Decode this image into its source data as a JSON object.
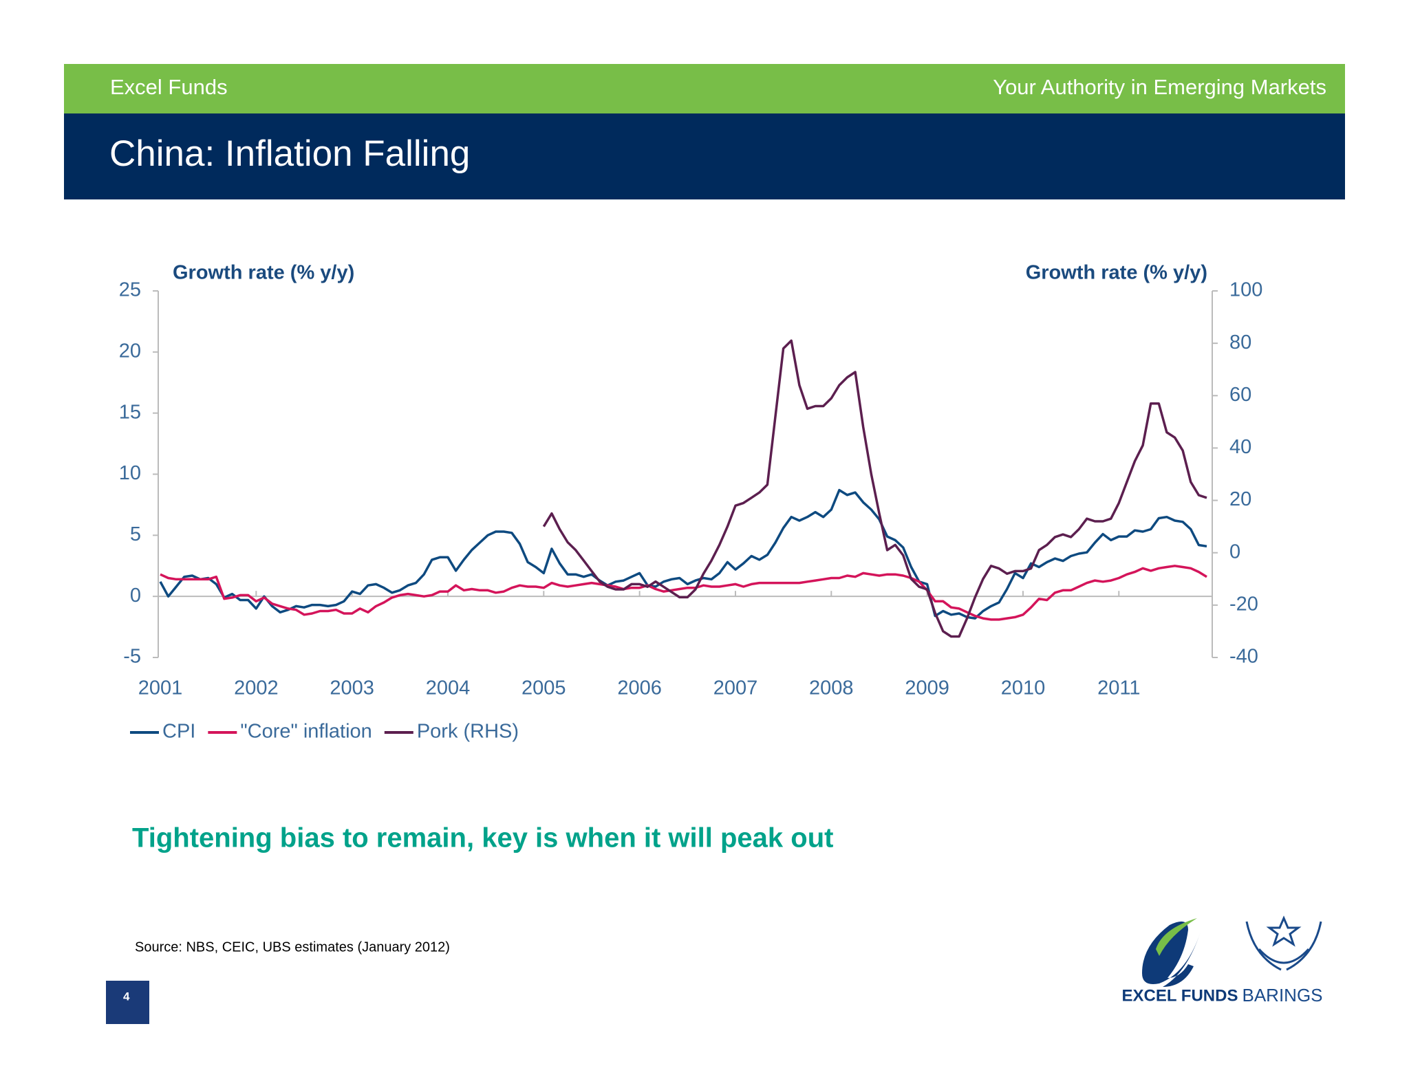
{
  "header": {
    "brand": "Excel Funds",
    "tagline": "Your Authority in Emerging Markets",
    "title": "China: Inflation Falling"
  },
  "chart_data": {
    "type": "line",
    "y_label": "Growth rate (% y/y)",
    "y2_label": "Growth rate (% y/y)",
    "categories": [
      "2001",
      null,
      null,
      null,
      null,
      null,
      null,
      null,
      null,
      null,
      null,
      null,
      "2002",
      null,
      null,
      null,
      null,
      null,
      null,
      null,
      null,
      null,
      null,
      null,
      "2003",
      null,
      null,
      null,
      null,
      null,
      null,
      null,
      null,
      null,
      null,
      null,
      "2004",
      null,
      null,
      null,
      null,
      null,
      null,
      null,
      null,
      null,
      null,
      null,
      "2005",
      null,
      null,
      null,
      null,
      null,
      null,
      null,
      null,
      null,
      null,
      null,
      "2006",
      null,
      null,
      null,
      null,
      null,
      null,
      null,
      null,
      null,
      null,
      null,
      "2007",
      null,
      null,
      null,
      null,
      null,
      null,
      null,
      null,
      null,
      null,
      null,
      "2008",
      null,
      null,
      null,
      null,
      null,
      null,
      null,
      null,
      null,
      null,
      null,
      "2009",
      null,
      null,
      null,
      null,
      null,
      null,
      null,
      null,
      null,
      null,
      null,
      "2010",
      null,
      null,
      null,
      null,
      null,
      null,
      null,
      null,
      null,
      null,
      null,
      "2011",
      null,
      null,
      null,
      null,
      null,
      null,
      null,
      null,
      null,
      null,
      null
    ],
    "series": [
      {
        "name": "CPI",
        "color": "#0e4a80",
        "values": [
          1.2,
          0.0,
          0.8,
          1.6,
          1.7,
          1.4,
          1.5,
          1.0,
          -0.1,
          0.2,
          -0.3,
          -0.3,
          -1.0,
          0.0,
          -0.8,
          -1.3,
          -1.1,
          -0.8,
          -0.9,
          -0.7,
          -0.7,
          -0.8,
          -0.7,
          -0.4,
          0.4,
          0.2,
          0.9,
          1.0,
          0.7,
          0.3,
          0.5,
          0.9,
          1.1,
          1.8,
          3.0,
          3.2,
          3.2,
          2.1,
          3.0,
          3.8,
          4.4,
          5.0,
          5.3,
          5.3,
          5.2,
          4.3,
          2.8,
          2.4,
          1.9,
          3.9,
          2.7,
          1.8,
          1.8,
          1.6,
          1.8,
          1.3,
          0.9,
          1.2,
          1.3,
          1.6,
          1.9,
          0.9,
          0.8,
          1.2,
          1.4,
          1.5,
          1.0,
          1.3,
          1.5,
          1.4,
          1.9,
          2.8,
          2.2,
          2.7,
          3.3,
          3.0,
          3.4,
          4.4,
          5.6,
          6.5,
          6.2,
          6.5,
          6.9,
          6.5,
          7.1,
          8.7,
          8.3,
          8.5,
          7.7,
          7.1,
          6.3,
          4.9,
          4.6,
          4.0,
          2.4,
          1.2,
          1.0,
          -1.6,
          -1.2,
          -1.5,
          -1.4,
          -1.7,
          -1.8,
          -1.2,
          -0.8,
          -0.5,
          0.6,
          1.9,
          1.5,
          2.7,
          2.4,
          2.8,
          3.1,
          2.9,
          3.3,
          3.5,
          3.6,
          4.4,
          5.1,
          4.6,
          4.9,
          4.9,
          5.4,
          5.3,
          5.5,
          6.4,
          6.5,
          6.2,
          6.1,
          5.5,
          4.2,
          4.1
        ]
      },
      {
        "name": "\"Core\" inflation",
        "color": "#d4145a",
        "values": [
          1.8,
          1.5,
          1.4,
          1.4,
          1.4,
          1.4,
          1.4,
          1.6,
          -0.2,
          -0.1,
          0.1,
          0.1,
          -0.4,
          -0.1,
          -0.6,
          -0.8,
          -1.0,
          -1.1,
          -1.5,
          -1.4,
          -1.2,
          -1.2,
          -1.1,
          -1.4,
          -1.4,
          -1.0,
          -1.3,
          -0.8,
          -0.5,
          -0.1,
          0.1,
          0.2,
          0.1,
          0.0,
          0.1,
          0.4,
          0.4,
          0.9,
          0.5,
          0.6,
          0.5,
          0.5,
          0.3,
          0.4,
          0.7,
          0.9,
          0.8,
          0.8,
          0.7,
          1.1,
          0.9,
          0.8,
          0.9,
          1.0,
          1.1,
          1.0,
          0.9,
          0.8,
          0.6,
          0.7,
          0.7,
          0.9,
          0.6,
          0.4,
          0.5,
          0.6,
          0.7,
          0.7,
          0.9,
          0.8,
          0.8,
          0.9,
          1.0,
          0.8,
          1.0,
          1.1,
          1.1,
          1.1,
          1.1,
          1.1,
          1.1,
          1.2,
          1.3,
          1.4,
          1.5,
          1.5,
          1.7,
          1.6,
          1.9,
          1.8,
          1.7,
          1.8,
          1.8,
          1.7,
          1.5,
          1.2,
          0.5,
          -0.4,
          -0.4,
          -0.9,
          -1.0,
          -1.3,
          -1.6,
          -1.8,
          -1.9,
          -1.9,
          -1.8,
          -1.7,
          -1.5,
          -0.9,
          -0.2,
          -0.3,
          0.3,
          0.5,
          0.5,
          0.8,
          1.1,
          1.3,
          1.2,
          1.3,
          1.5,
          1.8,
          2.0,
          2.3,
          2.1,
          2.3,
          2.4,
          2.5,
          2.4,
          2.3,
          2.0,
          1.6
        ]
      },
      {
        "name": "Pork (RHS)",
        "color": "#5c1f4f",
        "axis": "y2",
        "values": [
          null,
          null,
          null,
          null,
          null,
          null,
          null,
          null,
          null,
          null,
          null,
          null,
          null,
          null,
          null,
          null,
          null,
          null,
          null,
          null,
          null,
          null,
          null,
          null,
          null,
          null,
          null,
          null,
          null,
          null,
          null,
          null,
          null,
          null,
          null,
          null,
          null,
          null,
          null,
          null,
          null,
          null,
          null,
          null,
          null,
          null,
          null,
          null,
          10,
          15,
          9,
          4,
          1,
          -3,
          -7,
          -11,
          -13,
          -14,
          -14,
          -12,
          -12,
          -13,
          -11,
          -13,
          -15,
          -17,
          -17,
          -14,
          -8,
          -3,
          3,
          10,
          18,
          19,
          21,
          23,
          26,
          52,
          78,
          81,
          64,
          55,
          56,
          56,
          59,
          64,
          67,
          69,
          48,
          30,
          15,
          1,
          3,
          -1,
          -10,
          -13,
          -14,
          -23,
          -30,
          -32,
          -32,
          -25,
          -17,
          -10,
          -5,
          -6,
          -8,
          -7,
          -7,
          -6,
          1,
          3,
          6,
          7,
          6,
          9,
          13,
          12,
          12,
          13,
          19,
          27,
          35,
          41,
          57,
          57,
          46,
          44,
          39,
          27,
          22,
          21
        ]
      }
    ],
    "ylim": [
      -5,
      25
    ],
    "yticks": [
      -5,
      0,
      5,
      10,
      15,
      20,
      25
    ],
    "y2lim": [
      -40,
      100
    ],
    "y2ticks": [
      -40,
      -20,
      0,
      20,
      40,
      60,
      80,
      100
    ],
    "legend": "bottom-left"
  },
  "subtitle": "Tightening bias to remain, key is when it will peak out",
  "source": "Source: NBS, CEIC, UBS estimates (January 2012)",
  "page_number": "4",
  "logos": [
    "EXCEL FUNDS",
    "BARINGS"
  ]
}
